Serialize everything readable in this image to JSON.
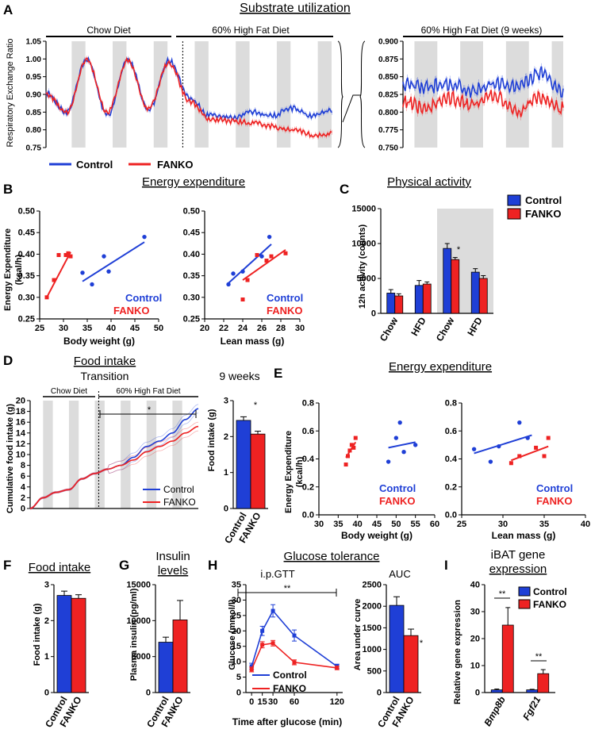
{
  "colors": {
    "control": "#1f3fd6",
    "fanko": "#ee2222",
    "shade": "#dcdcdc",
    "axis": "#000000"
  },
  "panels": {
    "A": {
      "letter": "A",
      "title": "Substrate utilization",
      "phase1": "Chow Diet",
      "phase2": "60% High Fat Diet",
      "phase3": "60% High Fat Diet (9 weeks)",
      "ylabel": "Respiratory Exchange Ratio",
      "legend_control": "Control",
      "legend_fanko": "FANKO"
    },
    "B": {
      "letter": "B",
      "title": "Energy expenditure",
      "ylabel1": "Energy Expenditure",
      "ylabel2": "(kcal/h)",
      "xlabel_left": "Body weight (g)",
      "xlabel_right": "Lean mass (g)",
      "key_control": "Control",
      "key_fanko": "FANKO"
    },
    "C": {
      "letter": "C",
      "title": "Physical activity",
      "ylabel": "12h activity (counts)",
      "legend_control": "Control",
      "legend_fanko": "FANKO",
      "star": "*"
    },
    "D": {
      "letter": "D",
      "title": "Food intake",
      "subtitle_left": "Transition",
      "subtitle_right": "9 weeks",
      "phase1": "Chow Diet",
      "phase2": "60% High Fat Diet",
      "ylabel_left": "Cumulative food intake (g)",
      "ylabel_right": "Food intake (g)",
      "legend_control": "Control",
      "legend_fanko": "FANKO",
      "star": "*",
      "star_bar": "*"
    },
    "E": {
      "letter": "E",
      "title": "Energy expenditure",
      "ylabel1": "Energy Expenditure",
      "ylabel2": "(kcal/h)",
      "xlabel_left": "Body weight (g)",
      "xlabel_right": "Lean mass (g)",
      "key_control": "Control",
      "key_fanko": "FANKO"
    },
    "F": {
      "letter": "F",
      "title": "Food intake",
      "ylabel": "Food intake (g)"
    },
    "G": {
      "letter": "G",
      "title1": "Insulin",
      "title2": "levels",
      "ylabel": "Plasma insulin (pg/ml)"
    },
    "H": {
      "letter": "H",
      "title": "Glucose tolerance",
      "subtitle_left": "i.p.GTT",
      "subtitle_right": "AUC",
      "ylabel_left": "Glucose (mmol/l)",
      "ylabel_right": "Area under curve",
      "xlabel": "Time after glucose (min)",
      "legend_control": "Control",
      "legend_fanko": "FANKO",
      "star2": "**",
      "star_bar": "*"
    },
    "I": {
      "letter": "I",
      "title1": "iBAT gene",
      "title2": "expression",
      "ylabel": "Relative gene expression",
      "legend_control": "Control",
      "legend_fanko": "FANKO",
      "star": "**"
    }
  },
  "chart_data": [
    {
      "id": "A_main",
      "type": "line",
      "title": "Substrate utilization",
      "ylabel": "Respiratory Exchange Ratio",
      "ylim": [
        0.75,
        1.05
      ],
      "yticks": [
        "0.75",
        "0.80",
        "0.85",
        "0.90",
        "0.95",
        "1.00",
        "1.05"
      ],
      "x_hours": [
        0,
        12,
        24,
        36,
        48,
        60,
        72,
        84,
        96,
        108,
        120,
        132,
        144,
        156,
        168
      ],
      "series": [
        {
          "name": "Control",
          "values": [
            0.905,
            0.85,
            1.0,
            0.84,
            1.0,
            0.855,
            0.995,
            0.89,
            0.84,
            0.835,
            0.85,
            0.84,
            0.86,
            0.84,
            0.855
          ]
        },
        {
          "name": "FANKO",
          "values": [
            0.9,
            0.85,
            0.995,
            0.85,
            0.995,
            0.86,
            0.99,
            0.88,
            0.83,
            0.825,
            0.82,
            0.81,
            0.8,
            0.785,
            0.79
          ]
        }
      ]
    },
    {
      "id": "A_9wk",
      "type": "line",
      "title": "60% High Fat Diet (9 weeks)",
      "ylim": [
        0.75,
        0.9
      ],
      "yticks": [
        "0.750",
        "0.775",
        "0.800",
        "0.825",
        "0.850",
        "0.875",
        "0.900"
      ],
      "x_hours": [
        0,
        12,
        24,
        36,
        48,
        60,
        72,
        84
      ],
      "series": [
        {
          "name": "Control",
          "values": [
            0.84,
            0.835,
            0.84,
            0.83,
            0.84,
            0.835,
            0.855,
            0.83
          ]
        },
        {
          "name": "FANKO",
          "values": [
            0.815,
            0.805,
            0.82,
            0.81,
            0.825,
            0.8,
            0.82,
            0.805
          ]
        }
      ]
    },
    {
      "id": "B_bw",
      "type": "scatter",
      "xlabel": "Body weight (g)",
      "ylabel": "Energy Expenditure (kcal/h)",
      "xlim": [
        25,
        50
      ],
      "ylim": [
        0.25,
        0.5
      ],
      "xticks": [
        "25",
        "30",
        "35",
        "40",
        "45",
        "50"
      ],
      "yticks": [
        "0.25",
        "0.30",
        "0.35",
        "0.40",
        "0.45",
        "0.50"
      ],
      "series": [
        {
          "name": "Control",
          "x": [
            34,
            36,
            38.5,
            39.5,
            47
          ],
          "y": [
            0.357,
            0.33,
            0.395,
            0.36,
            0.44
          ],
          "fit": [
            [
              34,
              0.337
            ],
            [
              47,
              0.428
            ]
          ]
        },
        {
          "name": "FANKO",
          "x": [
            26.5,
            28,
            29,
            30.5,
            31,
            31.5
          ],
          "y": [
            0.3,
            0.34,
            0.398,
            0.398,
            0.402,
            0.395
          ],
          "fit": [
            [
              26.5,
              0.3
            ],
            [
              31.5,
              0.405
            ]
          ]
        }
      ]
    },
    {
      "id": "B_lm",
      "type": "scatter",
      "xlabel": "Lean mass (g)",
      "xlim": [
        20,
        30
      ],
      "ylim": [
        0.25,
        0.5
      ],
      "xticks": [
        "20",
        "22",
        "24",
        "26",
        "28",
        "30"
      ],
      "yticks": [
        "0.25",
        "0.30",
        "0.35",
        "0.40",
        "0.45",
        "0.50"
      ],
      "series": [
        {
          "name": "Control",
          "x": [
            22.5,
            23,
            24,
            26,
            26.8
          ],
          "y": [
            0.33,
            0.355,
            0.36,
            0.395,
            0.44
          ],
          "fit": [
            [
              22.5,
              0.333
            ],
            [
              27,
              0.423
            ]
          ]
        },
        {
          "name": "FANKO",
          "x": [
            24,
            24.5,
            25.5,
            26.5,
            27,
            28.5
          ],
          "y": [
            0.295,
            0.34,
            0.398,
            0.385,
            0.395,
            0.402
          ],
          "fit": [
            [
              24,
              0.34
            ],
            [
              28.5,
              0.41
            ]
          ]
        }
      ]
    },
    {
      "id": "C",
      "type": "bar",
      "ylabel": "12h activity (counts)",
      "ylim": [
        0,
        15000
      ],
      "yticks": [
        "0",
        "5000",
        "10000",
        "15000"
      ],
      "categories": [
        "Chow",
        "HFD",
        "Chow",
        "HFD"
      ],
      "series": [
        {
          "name": "Control",
          "values": [
            2900,
            4000,
            9300,
            5900
          ],
          "err": [
            500,
            700,
            700,
            500
          ]
        },
        {
          "name": "FANKO",
          "values": [
            2500,
            4200,
            7700,
            5000
          ],
          "err": [
            300,
            300,
            300,
            400
          ]
        }
      ]
    },
    {
      "id": "D_trans",
      "type": "line",
      "ylabel": "Cumulative food intake (g)",
      "ylim": [
        0,
        20
      ],
      "yticks": [
        "0",
        "2",
        "4",
        "6",
        "8",
        "10",
        "12",
        "14",
        "16",
        "18",
        "20"
      ],
      "x_days": [
        0,
        1,
        2,
        3,
        4,
        5,
        6,
        7,
        8,
        9,
        10,
        11,
        12,
        13
      ],
      "series": [
        {
          "name": "Control",
          "values": [
            0,
            2.0,
            3.0,
            3.5,
            5.5,
            6.5,
            7.3,
            8.0,
            9.5,
            11.5,
            12.5,
            14.0,
            16.5,
            18.5
          ]
        },
        {
          "name": "FANKO",
          "values": [
            0,
            2.0,
            3.0,
            3.5,
            5.5,
            6.5,
            7.3,
            8.0,
            9.0,
            10.5,
            11.5,
            12.5,
            14.0,
            15.2
          ]
        }
      ]
    },
    {
      "id": "D_9wk",
      "type": "bar",
      "ylabel": "Food intake (g)",
      "ylim": [
        0,
        3
      ],
      "yticks": [
        "0",
        "1",
        "2",
        "3"
      ],
      "categories": [
        "Control",
        "FANKO"
      ],
      "values": [
        2.45,
        2.07
      ],
      "err": [
        0.1,
        0.08
      ]
    },
    {
      "id": "E_bw",
      "type": "scatter",
      "xlabel": "Body weight (g)",
      "ylabel": "Energy Expenditure (kcal/h)",
      "xlim": [
        30,
        60
      ],
      "ylim": [
        0,
        0.8
      ],
      "xticks": [
        "30",
        "35",
        "40",
        "45",
        "50",
        "55",
        "60"
      ],
      "yticks": [
        "0.0",
        "0.2",
        "0.4",
        "0.6",
        "0.8"
      ],
      "series": [
        {
          "name": "Control",
          "x": [
            48,
            50,
            51,
            52,
            55
          ],
          "y": [
            0.38,
            0.55,
            0.66,
            0.45,
            0.5
          ],
          "fit": [
            [
              48,
              0.48
            ],
            [
              55,
              0.52
            ]
          ]
        },
        {
          "name": "FANKO",
          "x": [
            37,
            37.5,
            38,
            38.5,
            39,
            39.5
          ],
          "y": [
            0.36,
            0.42,
            0.46,
            0.5,
            0.48,
            0.55
          ],
          "fit": [
            [
              37,
              0.41
            ],
            [
              39.5,
              0.52
            ]
          ]
        }
      ]
    },
    {
      "id": "E_lm",
      "type": "scatter",
      "xlabel": "Lean mass (g)",
      "xlim": [
        25,
        40
      ],
      "ylim": [
        0,
        0.8
      ],
      "xticks": [
        "25",
        "30",
        "35",
        "40"
      ],
      "yticks": [
        "0.0",
        "0.2",
        "0.4",
        "0.6",
        "0.8"
      ],
      "series": [
        {
          "name": "Control",
          "x": [
            26.5,
            28.5,
            29.5,
            32,
            33
          ],
          "y": [
            0.47,
            0.38,
            0.49,
            0.66,
            0.55
          ],
          "fit": [
            [
              26.5,
              0.44
            ],
            [
              33.5,
              0.57
            ]
          ]
        },
        {
          "name": "FANKO",
          "x": [
            31,
            32,
            34,
            35,
            35.5
          ],
          "y": [
            0.37,
            0.42,
            0.48,
            0.42,
            0.55
          ],
          "fit": [
            [
              31,
              0.39
            ],
            [
              35.5,
              0.49
            ]
          ]
        }
      ]
    },
    {
      "id": "F",
      "type": "bar",
      "ylabel": "Food intake (g)",
      "ylim": [
        0,
        3
      ],
      "yticks": [
        "0",
        "1",
        "2",
        "3"
      ],
      "categories": [
        "Control",
        "FANKO"
      ],
      "values": [
        2.7,
        2.62
      ],
      "err": [
        0.12,
        0.1
      ]
    },
    {
      "id": "G",
      "type": "bar",
      "ylabel": "Plasma insulin (pg/ml)",
      "ylim": [
        0,
        15000
      ],
      "yticks": [
        "0",
        "5000",
        "10000",
        "15000"
      ],
      "categories": [
        "Control",
        "FANKO"
      ],
      "values": [
        7000,
        10100
      ],
      "err": [
        700,
        2700
      ]
    },
    {
      "id": "H_gtt",
      "type": "line",
      "xlabel": "Time after glucose (min)",
      "ylabel": "Glucose (mmol/l)",
      "ylim": [
        0,
        35
      ],
      "yticks": [
        "0",
        "5",
        "10",
        "15",
        "20",
        "25",
        "30",
        "35"
      ],
      "x": [
        0,
        15,
        30,
        60,
        120
      ],
      "xticks": [
        "0",
        "15",
        "30",
        "60",
        "120"
      ],
      "series": [
        {
          "name": "Control",
          "values": [
            8.5,
            20.0,
            26.5,
            18.5,
            8.5
          ],
          "err": [
            1.0,
            1.5,
            2.0,
            1.8,
            0.7
          ]
        },
        {
          "name": "FANKO",
          "values": [
            7.5,
            15.5,
            16.0,
            9.8,
            8.0
          ],
          "err": [
            0.8,
            1.0,
            0.9,
            0.8,
            0.6
          ]
        }
      ]
    },
    {
      "id": "H_auc",
      "type": "bar",
      "ylabel": "Area under curve",
      "ylim": [
        0,
        2500
      ],
      "yticks": [
        "0",
        "500",
        "1000",
        "1500",
        "2000",
        "2500"
      ],
      "categories": [
        "Control",
        "FANKO"
      ],
      "values": [
        2020,
        1320
      ],
      "err": [
        200,
        150
      ]
    },
    {
      "id": "I",
      "type": "bar",
      "ylabel": "Relative gene expression",
      "ylim": [
        0,
        40
      ],
      "yticks": [
        "0",
        "10",
        "20",
        "30",
        "40"
      ],
      "categories": [
        "Bmp8b",
        "Fgf21"
      ],
      "series": [
        {
          "name": "Control",
          "values": [
            1.0,
            1.0
          ],
          "err": [
            0.3,
            0.2
          ]
        },
        {
          "name": "FANKO",
          "values": [
            25.0,
            7.0
          ],
          "err": [
            6.5,
            1.5
          ]
        }
      ]
    }
  ]
}
